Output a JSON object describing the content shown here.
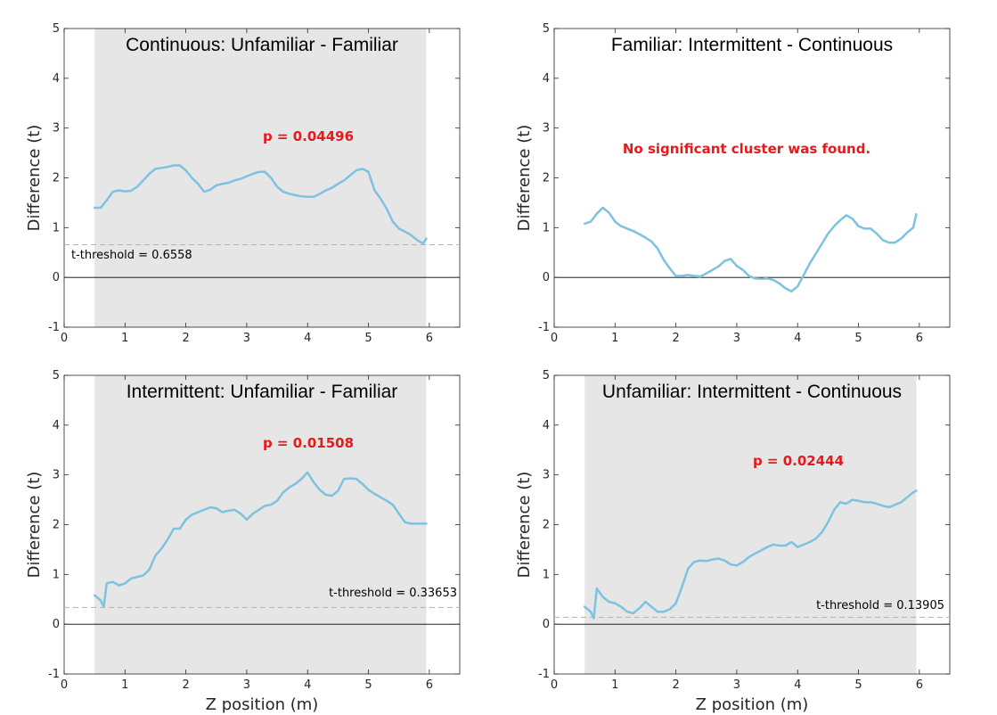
{
  "colors": {
    "series": "#7ec2e1",
    "significance_text": "#e41a1c",
    "cluster_shade": "#e6e6e6",
    "threshold_line": "#b3b3b3",
    "zero_line": "#000000"
  },
  "chart_data": [
    {
      "type": "line",
      "title": "Continuous: Unfamiliar - Familiar",
      "xlabel": "",
      "ylabel": "Difference (t)",
      "xlim": [
        0,
        6.5
      ],
      "ylim": [
        -1,
        5
      ],
      "xticks": [
        "0",
        "1",
        "2",
        "3",
        "4",
        "5",
        "6"
      ],
      "yticks": [
        "-1",
        "0",
        "1",
        "2",
        "3",
        "4",
        "5"
      ],
      "cluster_range": [
        0.5,
        5.95
      ],
      "threshold": 0.6558,
      "threshold_label": "t-threshold = 0.6558",
      "significance_label": "p = 0.04496",
      "x": [
        0.5,
        0.6,
        0.7,
        0.8,
        0.9,
        1.0,
        1.1,
        1.2,
        1.3,
        1.4,
        1.5,
        1.6,
        1.7,
        1.8,
        1.9,
        2.0,
        2.1,
        2.2,
        2.3,
        2.4,
        2.5,
        2.6,
        2.7,
        2.8,
        2.9,
        3.0,
        3.1,
        3.2,
        3.3,
        3.4,
        3.5,
        3.6,
        3.7,
        3.8,
        3.9,
        4.0,
        4.1,
        4.2,
        4.3,
        4.4,
        4.5,
        4.6,
        4.7,
        4.8,
        4.9,
        5.0,
        5.1,
        5.2,
        5.3,
        5.4,
        5.5,
        5.6,
        5.7,
        5.8,
        5.9,
        5.95
      ],
      "y": [
        1.4,
        1.4,
        1.55,
        1.72,
        1.75,
        1.73,
        1.74,
        1.82,
        1.95,
        2.08,
        2.18,
        2.2,
        2.22,
        2.25,
        2.25,
        2.15,
        2.0,
        1.88,
        1.72,
        1.76,
        1.85,
        1.88,
        1.9,
        1.95,
        1.98,
        2.03,
        2.08,
        2.12,
        2.12,
        2.0,
        1.82,
        1.72,
        1.68,
        1.65,
        1.63,
        1.62,
        1.62,
        1.68,
        1.75,
        1.8,
        1.88,
        1.95,
        2.05,
        2.15,
        2.18,
        2.12,
        1.75,
        1.58,
        1.38,
        1.12,
        0.98,
        0.92,
        0.85,
        0.75,
        0.68,
        0.78
      ]
    },
    {
      "type": "line",
      "title": "Familiar: Intermittent - Continuous",
      "xlabel": "",
      "ylabel": "Difference (t)",
      "xlim": [
        0,
        6.5
      ],
      "ylim": [
        -1,
        5
      ],
      "xticks": [
        "0",
        "1",
        "2",
        "3",
        "4",
        "5",
        "6"
      ],
      "yticks": [
        "-1",
        "0",
        "1",
        "2",
        "3",
        "4",
        "5"
      ],
      "cluster_range": null,
      "threshold": null,
      "threshold_label": "",
      "significance_label": "No significant cluster was found.",
      "x": [
        0.5,
        0.6,
        0.7,
        0.8,
        0.9,
        1.0,
        1.1,
        1.2,
        1.3,
        1.4,
        1.5,
        1.6,
        1.7,
        1.8,
        1.9,
        2.0,
        2.1,
        2.2,
        2.3,
        2.4,
        2.5,
        2.6,
        2.7,
        2.8,
        2.9,
        3.0,
        3.1,
        3.2,
        3.3,
        3.4,
        3.5,
        3.6,
        3.7,
        3.8,
        3.9,
        4.0,
        4.1,
        4.2,
        4.3,
        4.4,
        4.5,
        4.6,
        4.7,
        4.8,
        4.9,
        5.0,
        5.1,
        5.2,
        5.3,
        5.4,
        5.5,
        5.6,
        5.7,
        5.8,
        5.9,
        5.95
      ],
      "y": [
        1.08,
        1.12,
        1.28,
        1.4,
        1.3,
        1.12,
        1.03,
        0.98,
        0.93,
        0.87,
        0.8,
        0.72,
        0.58,
        0.35,
        0.18,
        0.03,
        0.03,
        0.05,
        0.03,
        0.02,
        0.08,
        0.15,
        0.22,
        0.33,
        0.37,
        0.23,
        0.15,
        0.03,
        -0.02,
        -0.03,
        -0.02,
        -0.05,
        -0.12,
        -0.22,
        -0.28,
        -0.18,
        0.05,
        0.28,
        0.48,
        0.68,
        0.88,
        1.03,
        1.15,
        1.25,
        1.18,
        1.03,
        0.98,
        0.98,
        0.88,
        0.75,
        0.7,
        0.7,
        0.78,
        0.9,
        1.0,
        1.27
      ]
    },
    {
      "type": "line",
      "title": "Intermittent: Unfamiliar - Familiar",
      "xlabel": "Z position (m)",
      "ylabel": "Difference (t)",
      "xlim": [
        0,
        6.5
      ],
      "ylim": [
        -1,
        5
      ],
      "xticks": [
        "0",
        "1",
        "2",
        "3",
        "4",
        "5",
        "6"
      ],
      "yticks": [
        "-1",
        "0",
        "1",
        "2",
        "3",
        "4",
        "5"
      ],
      "cluster_range": [
        0.5,
        5.95
      ],
      "threshold": 0.33653,
      "threshold_label": "t-threshold = 0.33653",
      "significance_label": "p = 0.01508",
      "x": [
        0.5,
        0.6,
        0.65,
        0.7,
        0.8,
        0.9,
        1.0,
        1.1,
        1.2,
        1.3,
        1.4,
        1.5,
        1.6,
        1.7,
        1.8,
        1.9,
        2.0,
        2.1,
        2.2,
        2.3,
        2.4,
        2.5,
        2.6,
        2.7,
        2.8,
        2.9,
        3.0,
        3.1,
        3.2,
        3.3,
        3.4,
        3.5,
        3.6,
        3.7,
        3.8,
        3.9,
        4.0,
        4.1,
        4.2,
        4.3,
        4.4,
        4.5,
        4.6,
        4.7,
        4.8,
        4.9,
        5.0,
        5.1,
        5.2,
        5.3,
        5.4,
        5.5,
        5.6,
        5.7,
        5.8,
        5.9,
        5.95
      ],
      "y": [
        0.58,
        0.48,
        0.35,
        0.82,
        0.85,
        0.78,
        0.82,
        0.92,
        0.95,
        0.98,
        1.1,
        1.38,
        1.52,
        1.7,
        1.92,
        1.92,
        2.1,
        2.2,
        2.25,
        2.3,
        2.35,
        2.33,
        2.25,
        2.28,
        2.3,
        2.22,
        2.1,
        2.22,
        2.3,
        2.38,
        2.4,
        2.48,
        2.65,
        2.75,
        2.82,
        2.92,
        3.05,
        2.85,
        2.7,
        2.6,
        2.58,
        2.68,
        2.92,
        2.93,
        2.92,
        2.82,
        2.7,
        2.62,
        2.55,
        2.48,
        2.4,
        2.22,
        2.05,
        2.02,
        2.02,
        2.02,
        2.02
      ]
    },
    {
      "type": "line",
      "title": "Unfamiliar: Intermittent - Continuous",
      "xlabel": "Z position (m)",
      "ylabel": "Difference (t)",
      "xlim": [
        0,
        6.5
      ],
      "ylim": [
        -1,
        5
      ],
      "xticks": [
        "0",
        "1",
        "2",
        "3",
        "4",
        "5",
        "6"
      ],
      "yticks": [
        "-1",
        "0",
        "1",
        "2",
        "3",
        "4",
        "5"
      ],
      "cluster_range": [
        0.5,
        5.95
      ],
      "threshold": 0.13905,
      "threshold_label": "t-threshold = 0.13905",
      "significance_label": "p = 0.02444",
      "x": [
        0.5,
        0.6,
        0.65,
        0.7,
        0.8,
        0.9,
        1.0,
        1.1,
        1.2,
        1.3,
        1.4,
        1.5,
        1.6,
        1.7,
        1.8,
        1.9,
        2.0,
        2.1,
        2.2,
        2.3,
        2.4,
        2.5,
        2.6,
        2.7,
        2.8,
        2.9,
        3.0,
        3.1,
        3.2,
        3.3,
        3.4,
        3.5,
        3.6,
        3.7,
        3.8,
        3.9,
        4.0,
        4.1,
        4.2,
        4.3,
        4.4,
        4.5,
        4.6,
        4.7,
        4.8,
        4.9,
        5.0,
        5.1,
        5.2,
        5.3,
        5.4,
        5.5,
        5.6,
        5.7,
        5.8,
        5.9,
        5.95
      ],
      "y": [
        0.35,
        0.25,
        0.12,
        0.72,
        0.55,
        0.45,
        0.42,
        0.35,
        0.25,
        0.22,
        0.32,
        0.45,
        0.35,
        0.25,
        0.25,
        0.3,
        0.42,
        0.75,
        1.12,
        1.25,
        1.28,
        1.27,
        1.3,
        1.32,
        1.28,
        1.2,
        1.18,
        1.25,
        1.35,
        1.42,
        1.48,
        1.55,
        1.6,
        1.58,
        1.58,
        1.65,
        1.55,
        1.6,
        1.65,
        1.72,
        1.85,
        2.05,
        2.3,
        2.45,
        2.42,
        2.5,
        2.48,
        2.45,
        2.45,
        2.42,
        2.38,
        2.35,
        2.4,
        2.45,
        2.55,
        2.65,
        2.68
      ]
    }
  ]
}
